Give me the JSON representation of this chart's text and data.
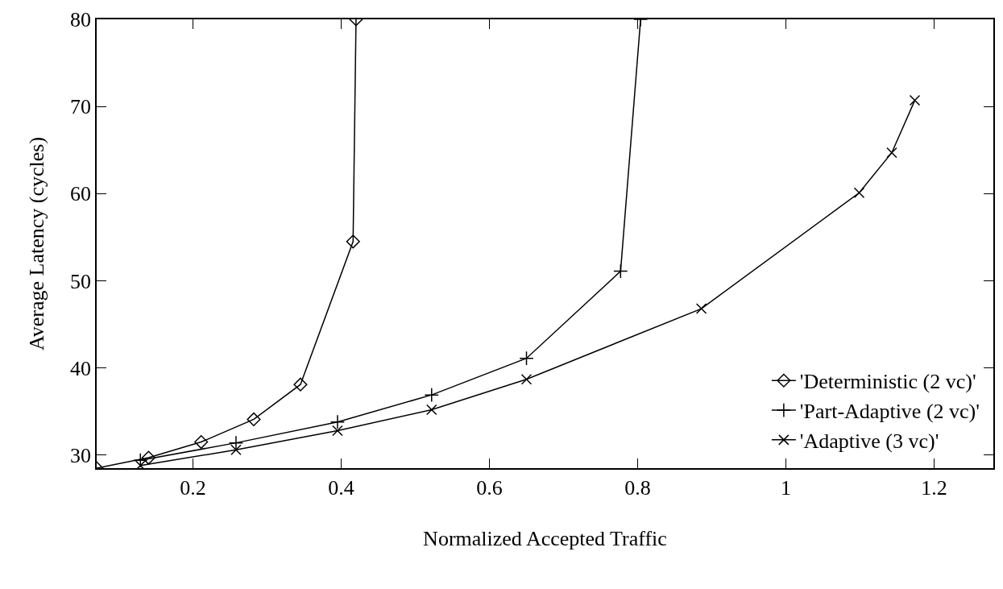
{
  "chart_data": {
    "type": "line",
    "xlabel": "Normalized Accepted Traffic",
    "ylabel": "Average Latency (cycles)",
    "xlim": [
      0.07,
      1.28
    ],
    "xticks": [
      0.2,
      0.4,
      0.6,
      0.8,
      {
        "value": 1.0,
        "label": "1"
      },
      1.2
    ],
    "ylim": [
      28.5,
      80
    ],
    "yticks": [
      30,
      40,
      50,
      60,
      70,
      80
    ],
    "legend": "bottom right",
    "line_style": "solid",
    "series": [
      {
        "name": "'Deterministic (2 vc)'",
        "color": "#000000",
        "marker": "diamond",
        "x": [
          0.07,
          0.14,
          0.211,
          0.282,
          0.345,
          0.416,
          0.42
        ],
        "values": [
          28.5,
          29.7,
          31.5,
          34.1,
          38.1,
          54.5,
          80
        ]
      },
      {
        "name": "'Part-Adaptive (2 vc)'",
        "color": "#000000",
        "marker": "cross",
        "x": [
          0.129,
          0.258,
          0.395,
          0.522,
          0.65,
          0.777,
          0.804
        ],
        "values": [
          29.4,
          31.4,
          33.8,
          36.9,
          41.1,
          51.1,
          80
        ]
      },
      {
        "name": "'Adaptive (3 vc)'",
        "color": "#000000",
        "marker": "x",
        "x": [
          0.129,
          0.258,
          0.395,
          0.522,
          0.65,
          0.886,
          1.099,
          1.143,
          1.174
        ],
        "values": [
          28.8,
          30.6,
          32.8,
          35.2,
          38.7,
          46.8,
          60.1,
          64.7,
          70.7
        ]
      }
    ]
  }
}
